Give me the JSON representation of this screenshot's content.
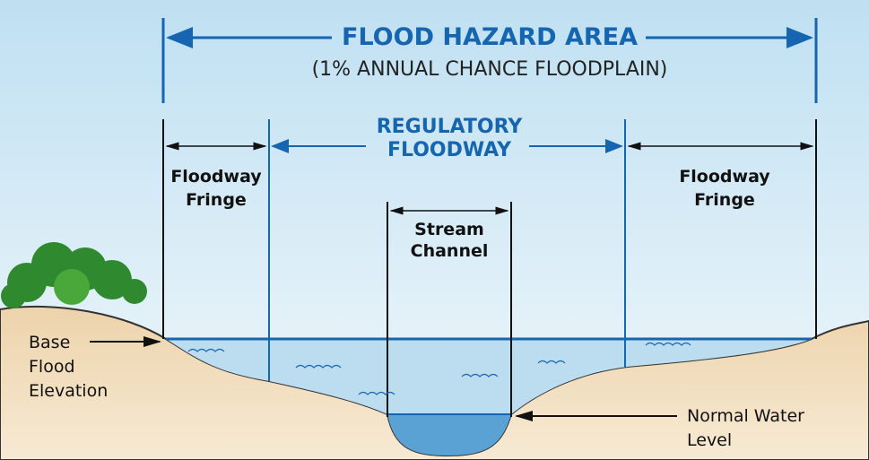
{
  "title": "FLOOD HAZARD AREA",
  "subtitle": "(1% ANNUAL CHANCE FLOODPLAIN)",
  "floodway": [
    "REGULATORY",
    "FLOODWAY"
  ],
  "fringe_left": [
    "Floodway",
    "Fringe"
  ],
  "fringe_right": [
    "Floodway",
    "Fringe"
  ],
  "stream_channel": [
    "Stream",
    "Channel"
  ],
  "base_flood_elevation": [
    "Base",
    "Flood",
    "Elevation"
  ],
  "normal_water_level": [
    "Normal Water",
    "Level"
  ]
}
